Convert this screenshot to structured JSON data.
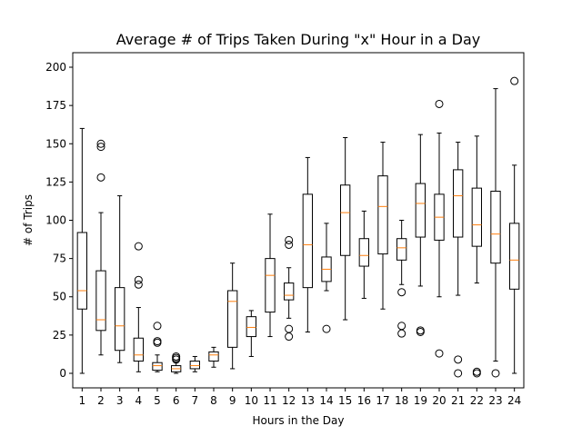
{
  "chart_data": {
    "type": "boxplot",
    "title": "Average # of Trips Taken During \"x\" Hour in a Day",
    "xlabel": "Hours in the Day",
    "ylabel": "# of Trips",
    "ylim": [
      -9.5,
      209.5
    ],
    "yticks": [
      0,
      25,
      50,
      75,
      100,
      125,
      150,
      175,
      200
    ],
    "categories": [
      "1",
      "2",
      "3",
      "4",
      "5",
      "6",
      "7",
      "8",
      "9",
      "10",
      "11",
      "12",
      "13",
      "14",
      "15",
      "16",
      "17",
      "18",
      "19",
      "20",
      "21",
      "22",
      "23",
      "24"
    ],
    "boxes": [
      {
        "whisker_low": 0,
        "q1": 42,
        "median": 54,
        "q3": 92,
        "whisker_high": 160,
        "outliers": []
      },
      {
        "whisker_low": 12,
        "q1": 28,
        "median": 35,
        "q3": 67,
        "whisker_high": 105,
        "outliers": [
          128,
          148,
          150
        ]
      },
      {
        "whisker_low": 7,
        "q1": 15,
        "median": 31,
        "q3": 56,
        "whisker_high": 116,
        "outliers": []
      },
      {
        "whisker_low": 1,
        "q1": 8,
        "median": 12,
        "q3": 23,
        "whisker_high": 43,
        "outliers": [
          58,
          61,
          83
        ]
      },
      {
        "whisker_low": 1,
        "q1": 2,
        "median": 5,
        "q3": 7,
        "whisker_high": 12,
        "outliers": [
          20,
          21,
          31
        ]
      },
      {
        "whisker_low": 0,
        "q1": 1,
        "median": 3,
        "q3": 5,
        "whisker_high": 7,
        "outliers": [
          9,
          10,
          11
        ]
      },
      {
        "whisker_low": 1,
        "q1": 3,
        "median": 5,
        "q3": 8,
        "whisker_high": 11,
        "outliers": []
      },
      {
        "whisker_low": 4,
        "q1": 8,
        "median": 12,
        "q3": 14,
        "whisker_high": 17,
        "outliers": []
      },
      {
        "whisker_low": 3,
        "q1": 17,
        "median": 47,
        "q3": 54,
        "whisker_high": 72,
        "outliers": []
      },
      {
        "whisker_low": 11,
        "q1": 24,
        "median": 30,
        "q3": 37,
        "whisker_high": 41,
        "outliers": []
      },
      {
        "whisker_low": 24,
        "q1": 40,
        "median": 64,
        "q3": 75,
        "whisker_high": 104,
        "outliers": []
      },
      {
        "whisker_low": 36,
        "q1": 48,
        "median": 51,
        "q3": 59,
        "whisker_high": 69,
        "outliers": [
          24,
          29,
          84,
          87
        ]
      },
      {
        "whisker_low": 27,
        "q1": 56,
        "median": 84,
        "q3": 117,
        "whisker_high": 141,
        "outliers": []
      },
      {
        "whisker_low": 54,
        "q1": 60,
        "median": 68,
        "q3": 76,
        "whisker_high": 98,
        "outliers": [
          29
        ]
      },
      {
        "whisker_low": 35,
        "q1": 77,
        "median": 105,
        "q3": 123,
        "whisker_high": 154,
        "outliers": []
      },
      {
        "whisker_low": 49,
        "q1": 70,
        "median": 77,
        "q3": 88,
        "whisker_high": 106,
        "outliers": []
      },
      {
        "whisker_low": 42,
        "q1": 78,
        "median": 109,
        "q3": 129,
        "whisker_high": 151,
        "outliers": []
      },
      {
        "whisker_low": 58,
        "q1": 74,
        "median": 82,
        "q3": 88,
        "whisker_high": 100,
        "outliers": [
          26,
          31,
          53
        ]
      },
      {
        "whisker_low": 57,
        "q1": 89,
        "median": 111,
        "q3": 124,
        "whisker_high": 156,
        "outliers": [
          27,
          28
        ]
      },
      {
        "whisker_low": 50,
        "q1": 87,
        "median": 102,
        "q3": 117,
        "whisker_high": 157,
        "outliers": [
          13,
          176
        ]
      },
      {
        "whisker_low": 51,
        "q1": 89,
        "median": 116,
        "q3": 133,
        "whisker_high": 151,
        "outliers": [
          0,
          9
        ]
      },
      {
        "whisker_low": 59,
        "q1": 83,
        "median": 97,
        "q3": 121,
        "whisker_high": 155,
        "outliers": [
          0,
          1
        ]
      },
      {
        "whisker_low": 8,
        "q1": 72,
        "median": 91,
        "q3": 119,
        "whisker_high": 186,
        "outliers": [
          0
        ]
      },
      {
        "whisker_low": 0,
        "q1": 55,
        "median": 74,
        "q3": 98,
        "whisker_high": 136,
        "outliers": [
          191
        ]
      }
    ],
    "colors": {
      "box": "#000000",
      "median": "#ff7f0e",
      "background": "#ffffff"
    },
    "grid": false,
    "legend": "none"
  }
}
